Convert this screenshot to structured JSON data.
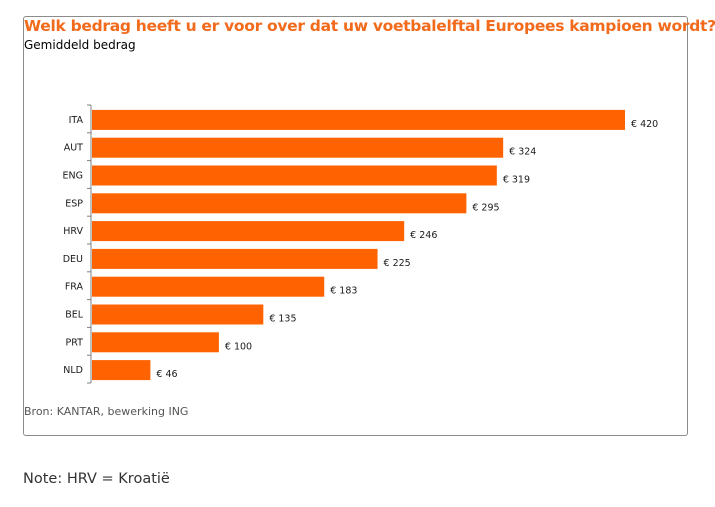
{
  "chart_data": {
    "type": "bar",
    "orientation": "horizontal",
    "title": "Welk bedrag heeft u er voor over dat uw voetbalelftal Europees kampioen wordt?",
    "subtitle": "Gemiddeld  bedrag",
    "categories": [
      "ITA",
      "AUT",
      "ENG",
      "ESP",
      "HRV",
      "DEU",
      "FRA",
      "BEL",
      "PRT",
      "NLD"
    ],
    "values": [
      420,
      324,
      319,
      295,
      246,
      225,
      183,
      135,
      100,
      46
    ],
    "value_labels": [
      "€ 420",
      "€ 324",
      "€ 319",
      "€ 295",
      "€ 246",
      "€ 225",
      "€ 183",
      "€ 135",
      "€ 100",
      "€ 46"
    ],
    "xlabel": "",
    "ylabel": "",
    "xlim": [
      0,
      420
    ],
    "grid": false,
    "legend": "none",
    "bar_color": "#ff6200",
    "title_color": "#f26a1b"
  },
  "source": "Bron: KANTAR, bewerking ING",
  "note": "Note: HRV = Kroatië"
}
